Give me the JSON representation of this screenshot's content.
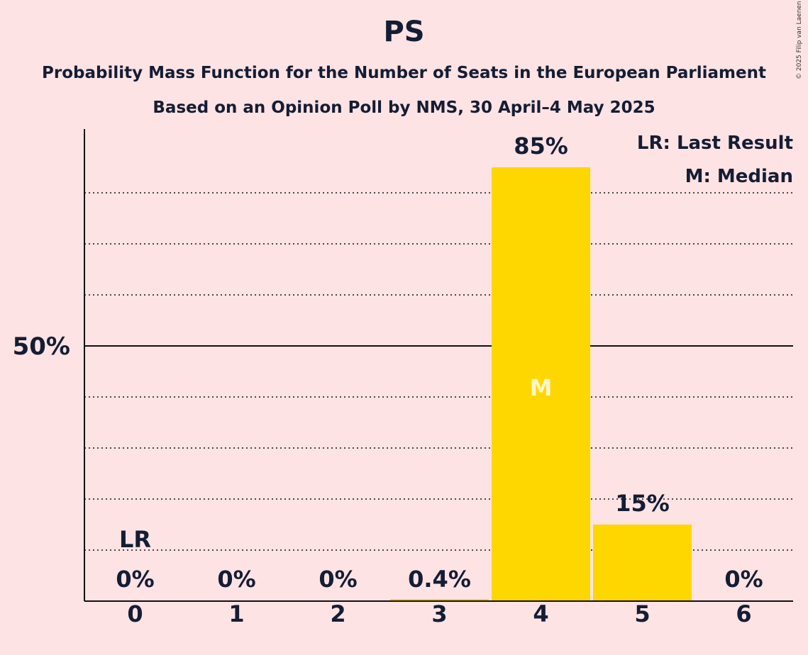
{
  "title": "PS",
  "subtitle": "Probability Mass Function for the Number of Seats in the European Parliament",
  "subtitle2": "Based on an Opinion Poll by NMS, 30 April–4 May 2025",
  "copyright": "© 2025 Filip van Laenen",
  "legend": {
    "lr": "LR: Last Result",
    "m": "M: Median"
  },
  "colors": {
    "background": "#FDE3E4",
    "bar": "#FFD700",
    "text": "#141d33"
  },
  "chart_data": {
    "type": "bar",
    "categories": [
      "0",
      "1",
      "2",
      "3",
      "4",
      "5",
      "6"
    ],
    "values": [
      0,
      0,
      0,
      0.4,
      85,
      15,
      0
    ],
    "data_labels": [
      "0%",
      "0%",
      "0%",
      "0.4%",
      "85%",
      "15%",
      "0%"
    ],
    "ytick_labels": [
      {
        "value": 50,
        "label": "50%"
      }
    ],
    "ylim": [
      0,
      92
    ],
    "gridlines": [
      10,
      20,
      30,
      40,
      60,
      70,
      80
    ],
    "last_result_index": 0,
    "last_result_label": "LR",
    "median_index": 4,
    "median_label": "M"
  }
}
